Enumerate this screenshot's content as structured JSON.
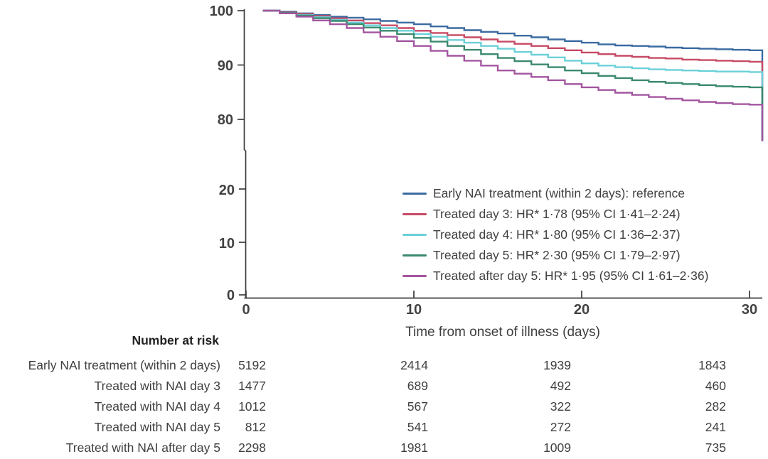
{
  "chart_data": {
    "type": "line",
    "subtype": "kaplan-meier-step",
    "title": "",
    "xlabel": "Time from onset of illness (days)",
    "ylabel": "",
    "x_tick_labels": [
      "0",
      "10",
      "20",
      "30"
    ],
    "y_tick_labels_upper": [
      "100",
      "90",
      "80"
    ],
    "y_tick_labels_lower": [
      "20",
      "10",
      "0"
    ],
    "axis_break": true,
    "xlim": [
      0,
      31
    ],
    "ylim": [
      0,
      100
    ],
    "legend_position": "center-right",
    "days": [
      1,
      2,
      3,
      4,
      5,
      6,
      7,
      8,
      9,
      10,
      11,
      12,
      13,
      14,
      15,
      16,
      17,
      18,
      19,
      20,
      21,
      22,
      23,
      24,
      25,
      26,
      27,
      28,
      29,
      30
    ],
    "final_drop_value": 76,
    "series": [
      {
        "name": "Early NAI treatment (within 2 days): reference",
        "color": "#3b6ba1",
        "values": [
          100,
          99.8,
          99.5,
          99.2,
          98.9,
          98.7,
          98.4,
          98.1,
          97.8,
          97.5,
          97.1,
          96.8,
          96.4,
          96.1,
          95.8,
          95.4,
          95.1,
          94.7,
          94.4,
          94.1,
          93.8,
          93.6,
          93.5,
          93.4,
          93.2,
          93.1,
          93.0,
          92.9,
          92.8,
          92.7
        ]
      },
      {
        "name": "Treated day 3: HR* 1·78 (95% CI 1·41–2·24)",
        "color": "#c74a65",
        "values": [
          100,
          99.7,
          99.4,
          99.0,
          98.6,
          98.2,
          97.7,
          97.3,
          96.8,
          96.3,
          95.9,
          95.5,
          95.1,
          94.7,
          94.3,
          93.9,
          93.5,
          93.1,
          92.7,
          92.3,
          92.0,
          91.7,
          91.5,
          91.3,
          91.2,
          91.0,
          90.9,
          90.8,
          90.7,
          90.6
        ]
      },
      {
        "name": "Treated day 4: HR* 1·80 (95% CI 1·36–2·37)",
        "color": "#6bd0d8",
        "values": [
          100,
          99.6,
          99.2,
          98.8,
          98.3,
          97.8,
          97.3,
          96.8,
          96.3,
          95.7,
          95.2,
          94.6,
          94.1,
          93.5,
          93.0,
          92.4,
          91.9,
          91.4,
          90.8,
          90.3,
          89.9,
          89.6,
          89.4,
          89.2,
          89.1,
          89.0,
          88.9,
          88.8,
          88.8,
          88.7
        ]
      },
      {
        "name": "Treated day 5: HR* 2·30 (95% CI 1·79–2·97)",
        "color": "#3a8a6e",
        "values": [
          100,
          99.6,
          99.1,
          98.6,
          98.1,
          97.5,
          96.9,
          96.3,
          95.7,
          95.0,
          94.3,
          93.5,
          92.8,
          92.0,
          91.3,
          90.7,
          90.1,
          89.6,
          89.0,
          88.5,
          88.0,
          87.6,
          87.2,
          86.9,
          86.7,
          86.5,
          86.3,
          86.1,
          86.0,
          85.9
        ]
      },
      {
        "name": "Treated after day 5: HR* 1·95 (95% CI 1·61–2·36)",
        "color": "#a356a0",
        "values": [
          100,
          99.5,
          98.9,
          98.2,
          97.5,
          96.8,
          96.0,
          95.2,
          94.4,
          93.5,
          92.6,
          91.7,
          90.8,
          89.9,
          89.0,
          88.4,
          87.8,
          87.2,
          86.5,
          85.9,
          85.4,
          84.9,
          84.5,
          84.1,
          83.8,
          83.5,
          83.2,
          83.0,
          82.8,
          82.7
        ]
      }
    ]
  },
  "risk_table": {
    "header": "Number at risk",
    "rows": [
      {
        "label": "Early NAI treatment (within 2 days)",
        "values": [
          "5192",
          "2414",
          "1939",
          "1843"
        ]
      },
      {
        "label": "Treated with NAI day 3",
        "values": [
          "1477",
          "689",
          "492",
          "460"
        ]
      },
      {
        "label": "Treated with NAI day 4",
        "values": [
          "1012",
          "567",
          "322",
          "282"
        ]
      },
      {
        "label": "Treated with NAI day 5",
        "values": [
          "812",
          "541",
          "272",
          "241"
        ]
      },
      {
        "label": "Treated with NAI after day 5",
        "values": [
          "2298",
          "1981",
          "1009",
          "735"
        ]
      }
    ]
  }
}
